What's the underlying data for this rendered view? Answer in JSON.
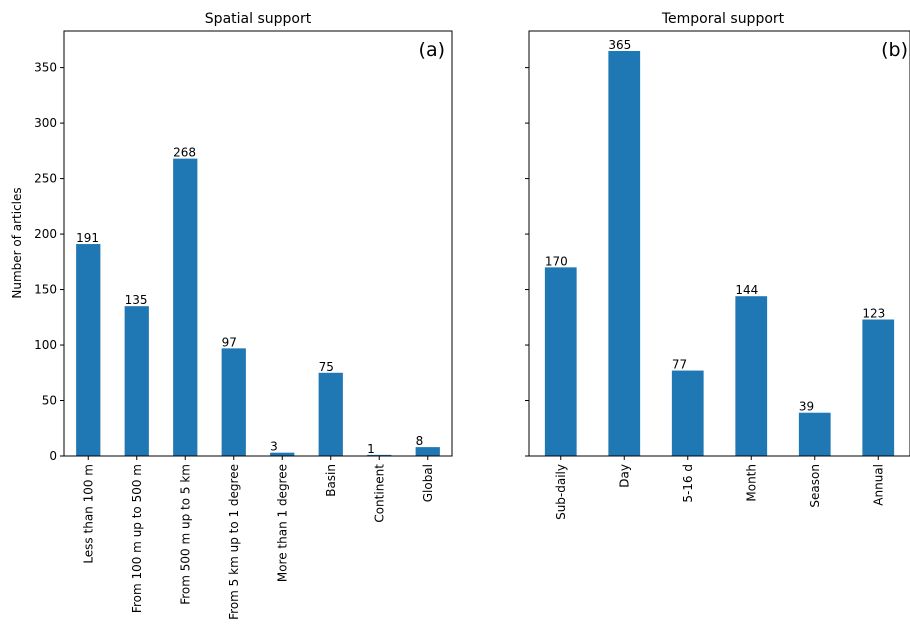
{
  "figure": {
    "ylabel": "Number of articles",
    "bar_color": "#1f77b4"
  },
  "chart_data": [
    {
      "type": "bar",
      "title": "Spatial support",
      "panel_label": "(a)",
      "xlabel": "",
      "ylabel": "Number of articles",
      "categories": [
        "Less than 100 m",
        "From 100 m up to 500 m",
        "From 500 m up to 5 km",
        "From 5 km up to 1 degree",
        "More than 1 degree",
        "Basin",
        "Continent",
        "Global"
      ],
      "values": [
        191,
        135,
        268,
        97,
        3,
        75,
        1,
        8
      ],
      "ylim": [
        0,
        383
      ],
      "yticks": [
        0,
        50,
        100,
        150,
        200,
        250,
        300,
        350
      ]
    },
    {
      "type": "bar",
      "title": "Temporal support",
      "panel_label": "(b)",
      "xlabel": "",
      "ylabel": "",
      "categories": [
        "Sub-daily",
        "Day",
        "5-16 d",
        "Month",
        "Season",
        "Annual"
      ],
      "values": [
        170,
        365,
        77,
        144,
        39,
        123
      ],
      "ylim": [
        0,
        383
      ],
      "yticks": [
        0,
        50,
        100,
        150,
        200,
        250,
        300,
        350
      ]
    }
  ]
}
